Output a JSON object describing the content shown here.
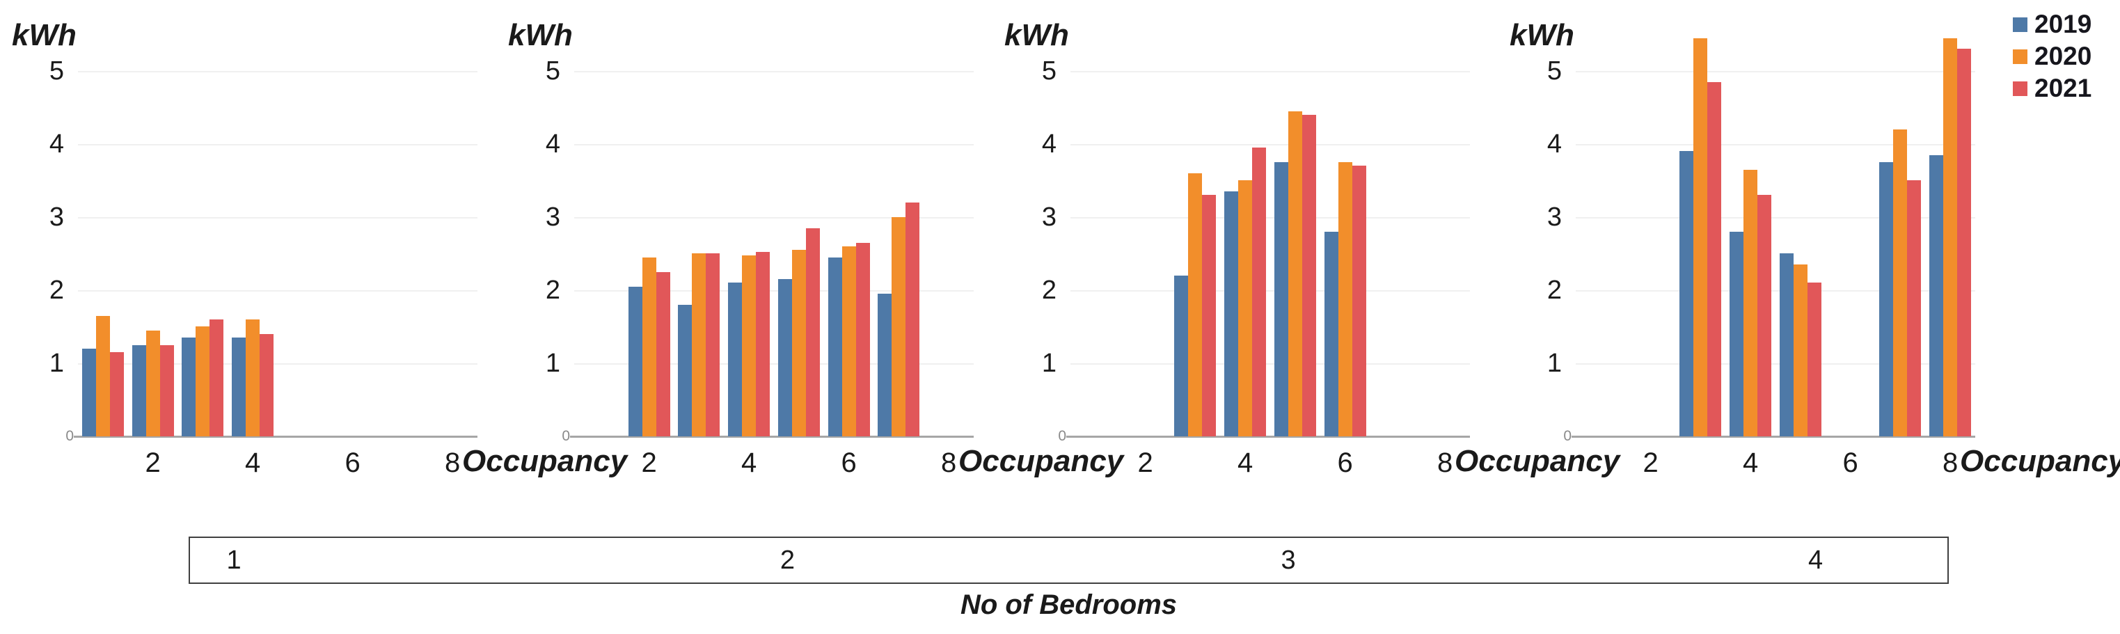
{
  "chart_data": {
    "type": "bar",
    "title": "",
    "ylabel": "kWh",
    "xlabel": "Occupancy",
    "group_axis_label": "No of Bedrooms",
    "ylim": [
      0,
      5
    ],
    "yticks": [
      1,
      2,
      3,
      4,
      5
    ],
    "origin_label": "0",
    "xticks": [
      2,
      4,
      6,
      8
    ],
    "x_slot_range": [
      1,
      8
    ],
    "grid": true,
    "legend_position": "top-right",
    "legend": [
      {
        "name": "2019",
        "color": "#4E79A7"
      },
      {
        "name": "2020",
        "color": "#F28E2B"
      },
      {
        "name": "2021",
        "color": "#E15759"
      }
    ],
    "panels": [
      {
        "bedrooms": "1",
        "label_pos_pct": 2.5,
        "occupancies": [
          1,
          2,
          3,
          4
        ],
        "series": [
          {
            "name": "2019",
            "values": [
              1.2,
              1.25,
              1.35,
              1.35
            ]
          },
          {
            "name": "2020",
            "values": [
              1.65,
              1.45,
              1.5,
              1.6
            ]
          },
          {
            "name": "2021",
            "values": [
              1.15,
              1.25,
              1.6,
              1.4
            ]
          }
        ]
      },
      {
        "bedrooms": "2",
        "label_pos_pct": 34.0,
        "occupancies": [
          2,
          3,
          4,
          5,
          6,
          7
        ],
        "series": [
          {
            "name": "2019",
            "values": [
              2.05,
              1.8,
              2.1,
              2.15,
              2.45,
              1.95
            ]
          },
          {
            "name": "2020",
            "values": [
              2.45,
              2.5,
              2.48,
              2.55,
              2.6,
              3.0
            ]
          },
          {
            "name": "2021",
            "values": [
              2.25,
              2.5,
              2.52,
              2.85,
              2.65,
              3.2
            ]
          }
        ]
      },
      {
        "bedrooms": "3",
        "label_pos_pct": 62.5,
        "occupancies": [
          3,
          4,
          5,
          6
        ],
        "series": [
          {
            "name": "2019",
            "values": [
              2.2,
              3.35,
              3.75,
              2.8
            ]
          },
          {
            "name": "2020",
            "values": [
              3.6,
              3.5,
              4.45,
              3.75
            ]
          },
          {
            "name": "2021",
            "values": [
              3.3,
              3.95,
              4.4,
              3.7
            ]
          }
        ]
      },
      {
        "bedrooms": "4",
        "label_pos_pct": 92.5,
        "occupancies": [
          3,
          4,
          5,
          7,
          8
        ],
        "series": [
          {
            "name": "2019",
            "values": [
              3.9,
              2.8,
              2.5,
              3.75,
              3.85
            ]
          },
          {
            "name": "2020",
            "values": [
              5.45,
              3.65,
              2.35,
              4.2,
              5.45
            ]
          },
          {
            "name": "2021",
            "values": [
              4.85,
              3.3,
              2.1,
              3.5,
              5.3
            ]
          }
        ]
      }
    ]
  }
}
